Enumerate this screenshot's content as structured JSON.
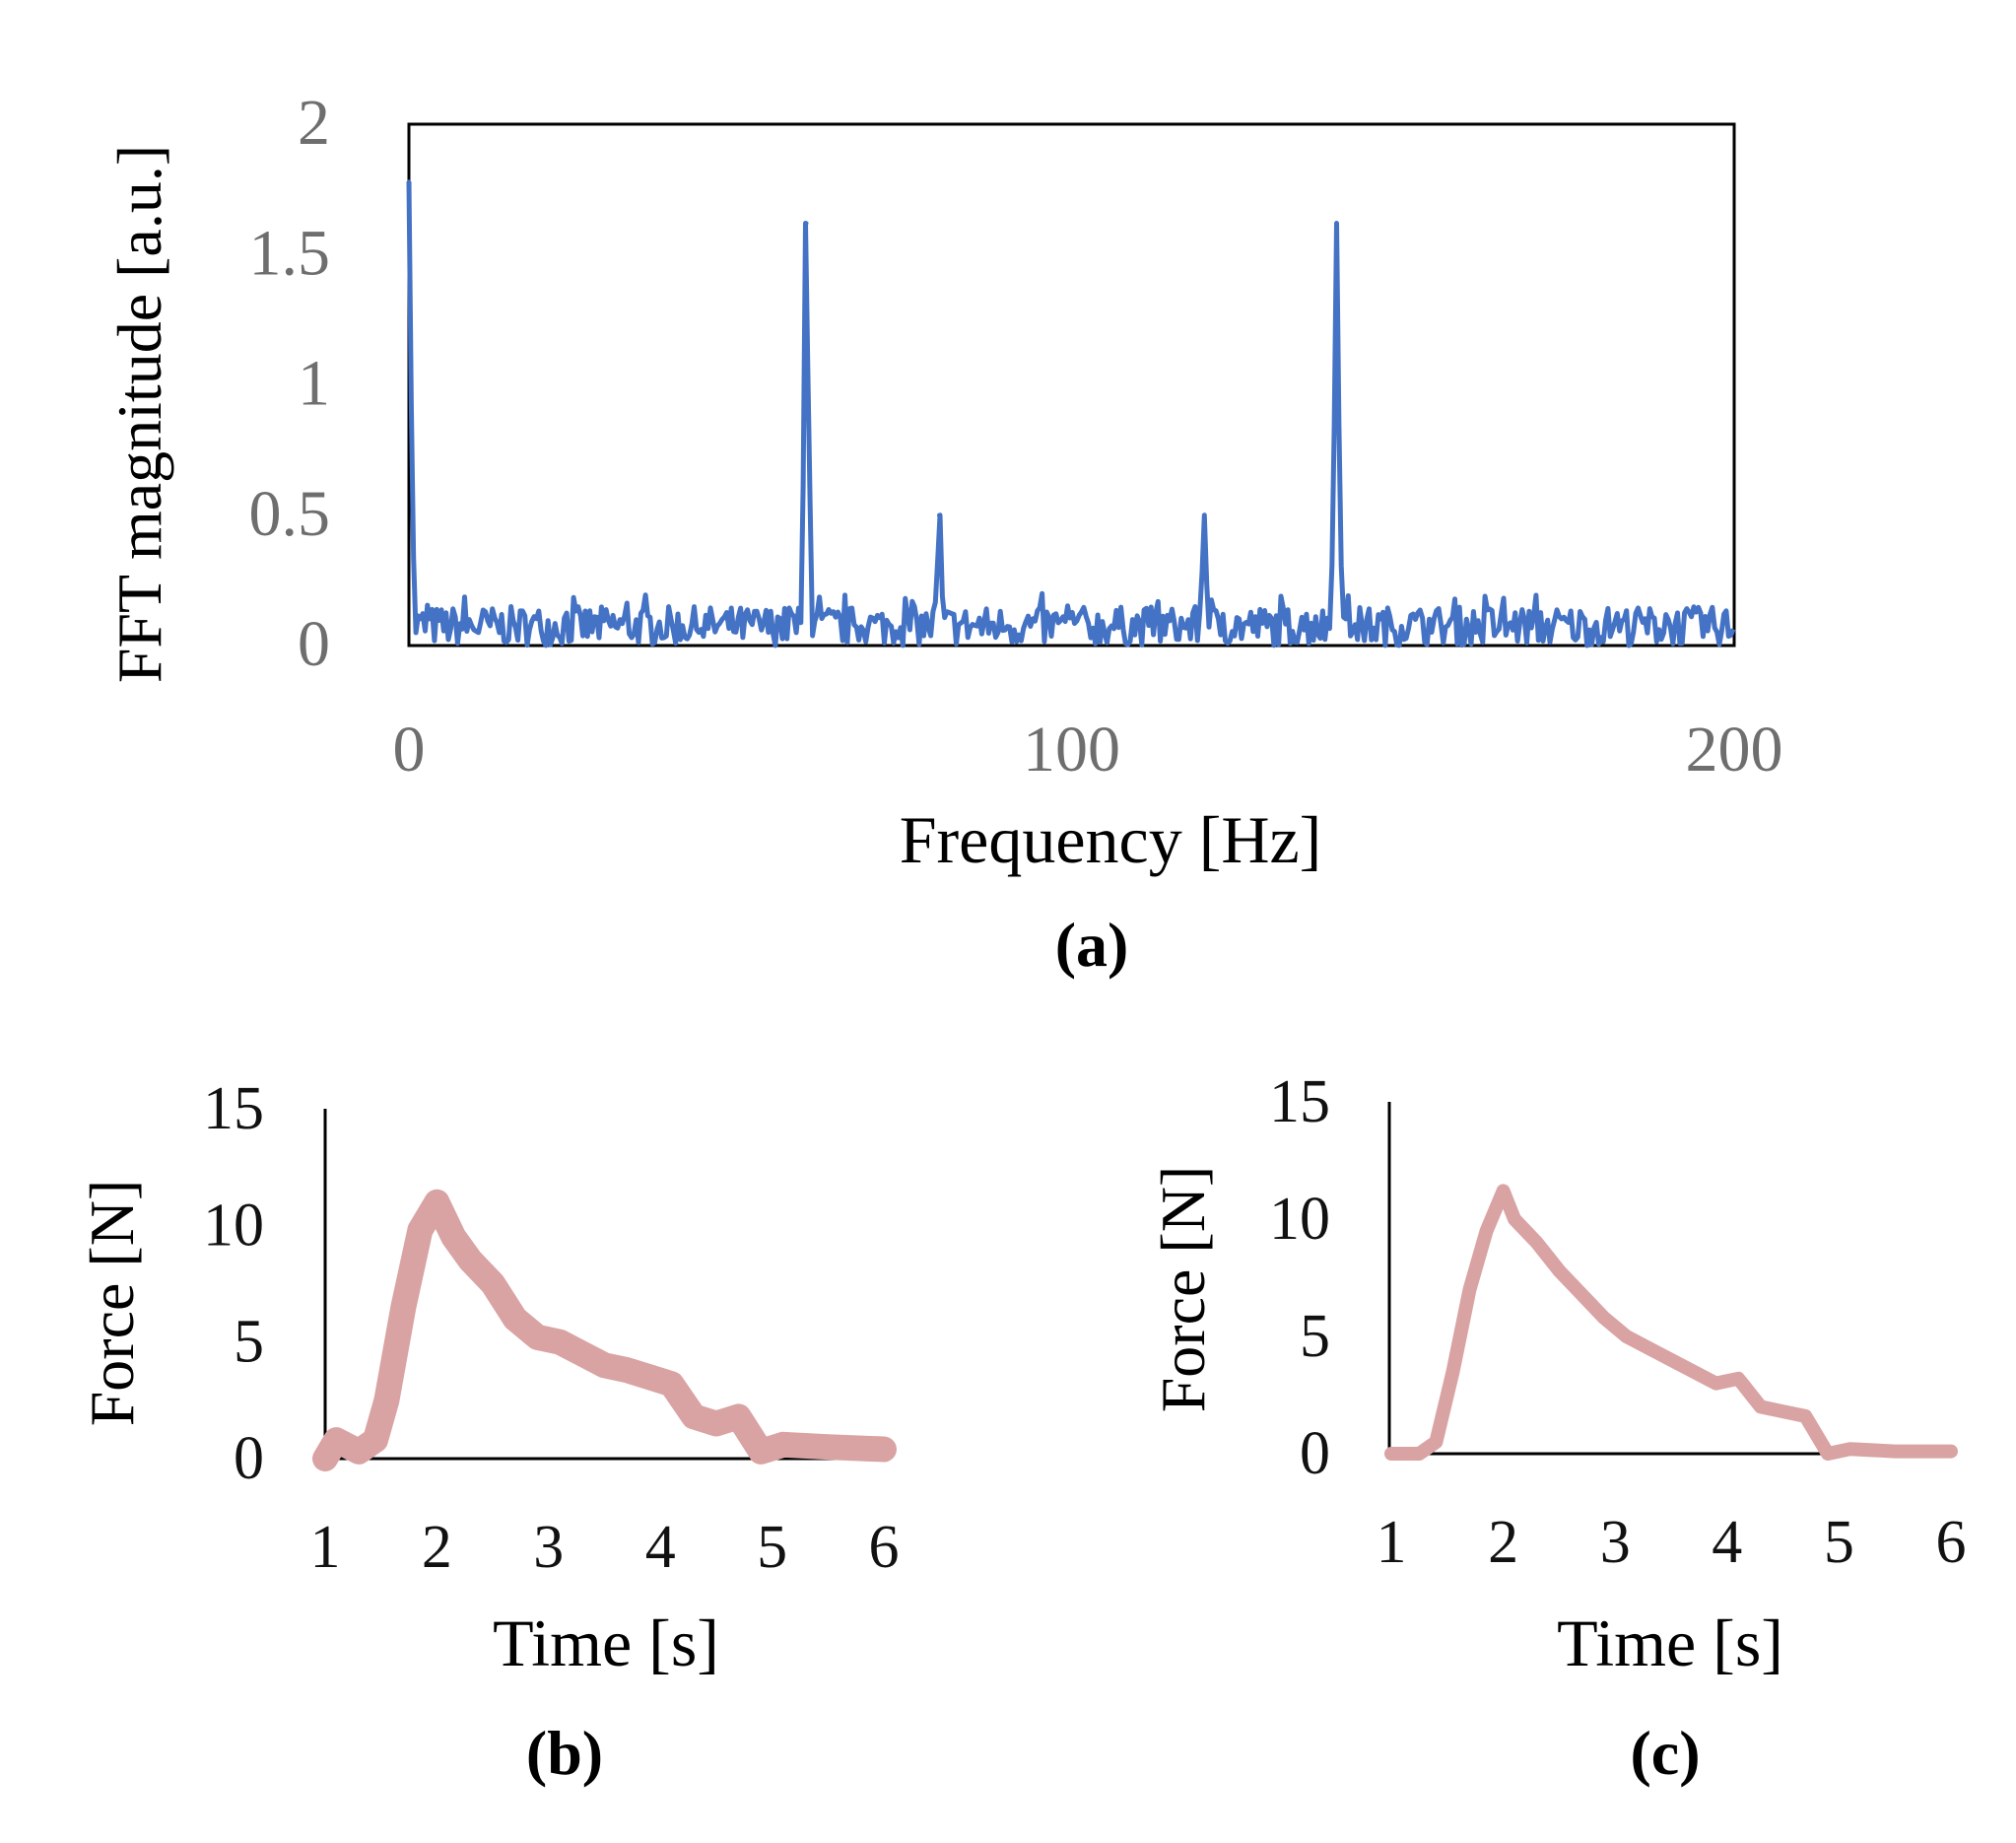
{
  "chart_data": [
    {
      "id": "a",
      "type": "line",
      "panel_label": "(a)",
      "title": "",
      "xlabel": "Frequency [Hz]",
      "ylabel": "FFT magnitude [a.u.]",
      "xlim": [
        0,
        200
      ],
      "ylim": [
        0,
        2
      ],
      "x_ticks": [
        "0",
        "100",
        "200"
      ],
      "y_ticks": [
        "2",
        "1.5",
        "1",
        "0.5",
        "0"
      ],
      "grid": false,
      "color": "#4472c4",
      "noise_floor": [
        0.0,
        0.15
      ],
      "series": [
        {
          "name": "FFT",
          "peaks": [
            {
              "x": 0,
              "y": 1.78
            },
            {
              "x": 60,
              "y": 1.62
            },
            {
              "x": 80,
              "y": 0.5
            },
            {
              "x": 120,
              "y": 0.5
            },
            {
              "x": 140,
              "y": 1.62
            }
          ]
        }
      ]
    },
    {
      "id": "b",
      "type": "line",
      "panel_label": "(b)",
      "title": "",
      "xlabel": "Time [s]",
      "ylabel": "Force [N]",
      "xlim": [
        1,
        6
      ],
      "ylim": [
        0,
        15
      ],
      "x_ticks": [
        "1",
        "2",
        "3",
        "4",
        "5",
        "6"
      ],
      "y_ticks": [
        "15",
        "10",
        "5",
        "0"
      ],
      "grid": false,
      "color": "#d9a3a3",
      "series": [
        {
          "name": "Force",
          "x": [
            1.0,
            1.1,
            1.3,
            1.45,
            1.55,
            1.7,
            1.85,
            2.0,
            2.15,
            2.3,
            2.5,
            2.7,
            2.9,
            3.1,
            3.3,
            3.5,
            3.7,
            3.9,
            4.1,
            4.3,
            4.5,
            4.7,
            4.9,
            5.1,
            5.5,
            6.0
          ],
          "y": [
            0.0,
            0.8,
            0.3,
            0.8,
            2.5,
            6.5,
            9.8,
            11.0,
            9.5,
            8.5,
            7.5,
            6.0,
            5.2,
            5.0,
            4.5,
            4.0,
            3.8,
            3.5,
            3.2,
            1.8,
            1.5,
            1.8,
            0.3,
            0.6,
            0.5,
            0.4
          ]
        }
      ]
    },
    {
      "id": "c",
      "type": "line",
      "panel_label": "(c)",
      "title": "",
      "xlabel": "Time [s]",
      "ylabel": "Force [N]",
      "xlim": [
        1,
        6
      ],
      "ylim": [
        0,
        15
      ],
      "x_ticks": [
        "1",
        "2",
        "3",
        "4",
        "5",
        "6"
      ],
      "y_ticks": [
        "15",
        "10",
        "5",
        "0"
      ],
      "grid": false,
      "color": "#d9a3a3",
      "series": [
        {
          "name": "Force",
          "x": [
            1.0,
            1.25,
            1.4,
            1.55,
            1.7,
            1.85,
            2.0,
            2.1,
            2.3,
            2.5,
            2.7,
            2.9,
            3.1,
            3.3,
            3.5,
            3.7,
            3.9,
            4.1,
            4.3,
            4.5,
            4.7,
            4.9,
            5.1,
            5.5,
            6.0
          ],
          "y": [
            0.0,
            0.0,
            0.5,
            3.5,
            7.0,
            9.5,
            11.2,
            10.0,
            9.0,
            7.8,
            6.8,
            5.8,
            5.0,
            4.5,
            4.0,
            3.5,
            3.0,
            3.2,
            2.0,
            1.8,
            1.6,
            0.0,
            0.2,
            0.1,
            0.1
          ]
        }
      ]
    }
  ]
}
